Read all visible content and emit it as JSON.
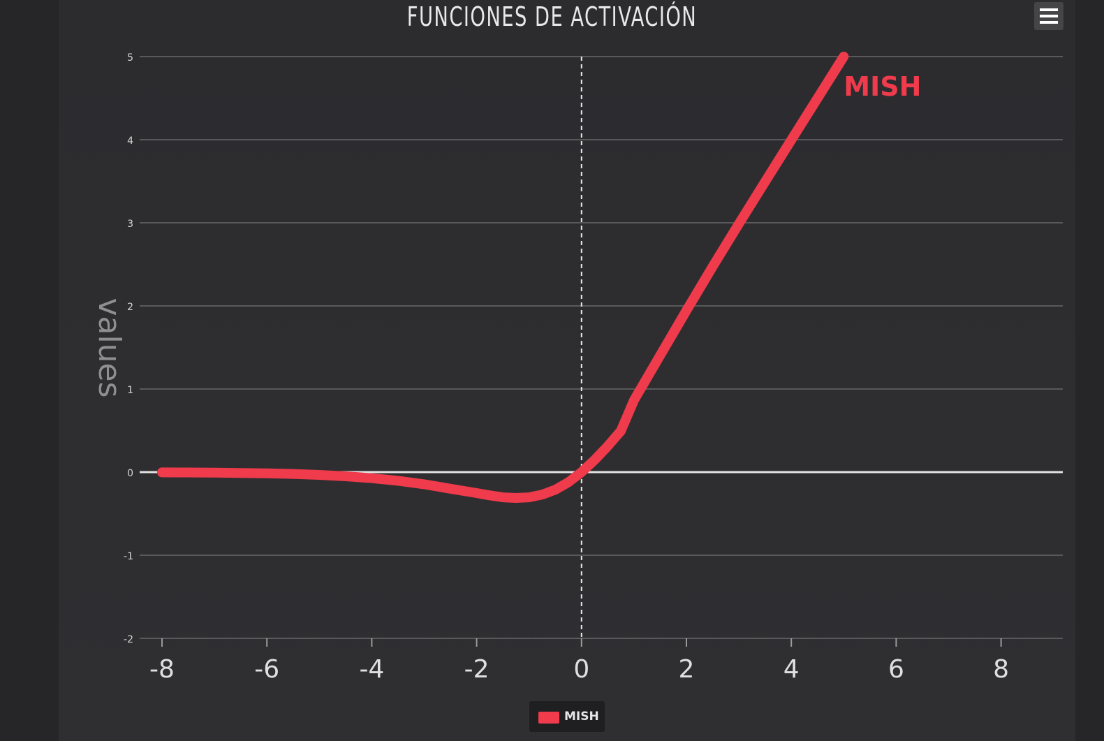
{
  "chart_data": {
    "type": "line",
    "title": "FUNCIONES DE ACTIVACIÓN",
    "xlabel": "",
    "ylabel": "values",
    "xlim": [
      -8,
      9
    ],
    "ylim": [
      -2,
      5
    ],
    "x_ticks": [
      "-8",
      "-6",
      "-4",
      "-2",
      "0",
      "2",
      "4",
      "6",
      "8"
    ],
    "y_ticks": [
      "-2",
      "-1",
      "0",
      "1",
      "2",
      "3",
      "4",
      "5"
    ],
    "grid": true,
    "legend_position": "bottom-center",
    "series": [
      {
        "name": "MISH",
        "color": "#ef3b4b",
        "x": [
          -8,
          -7.5,
          -7,
          -6.5,
          -6,
          -5.5,
          -5,
          -4.5,
          -4,
          -3.5,
          -3,
          -2.5,
          -2,
          -1.75,
          -1.5,
          -1.25,
          -1,
          -0.75,
          -0.5,
          -0.25,
          0,
          0.25,
          0.5,
          0.75,
          1,
          1.5,
          2,
          2.5,
          3,
          3.5,
          4,
          4.5,
          5
        ],
        "y": [
          -0.003,
          -0.004,
          -0.006,
          -0.01,
          -0.015,
          -0.022,
          -0.034,
          -0.05,
          -0.073,
          -0.104,
          -0.146,
          -0.2,
          -0.252,
          -0.28,
          -0.303,
          -0.311,
          -0.303,
          -0.271,
          -0.212,
          -0.121,
          0.0,
          0.147,
          0.313,
          0.496,
          0.865,
          1.404,
          1.944,
          2.472,
          2.987,
          3.494,
          3.997,
          4.499,
          5.0
        ]
      }
    ]
  },
  "ui": {
    "menu_icon": "hamburger-menu-icon"
  }
}
